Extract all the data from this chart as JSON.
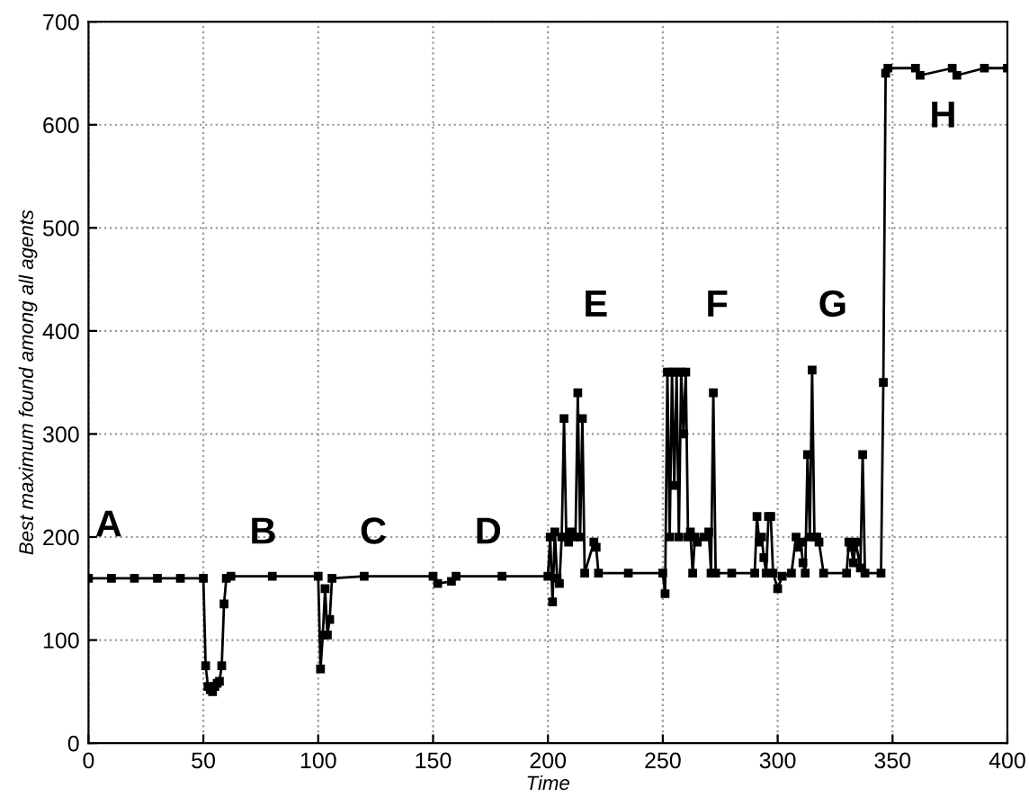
{
  "chart_data": {
    "type": "line",
    "xlabel": "Time",
    "ylabel": "Best maximum found among all agents",
    "xlim": [
      0,
      400
    ],
    "ylim": [
      0,
      700
    ],
    "xticks": [
      0,
      50,
      100,
      150,
      200,
      250,
      300,
      350,
      400
    ],
    "yticks": [
      0,
      100,
      200,
      300,
      400,
      500,
      600,
      700
    ],
    "grid": true,
    "marker": "square",
    "line_style": "solid",
    "series": [
      {
        "color": "#000000",
        "x": [
          0,
          10,
          20,
          30,
          40,
          50,
          51,
          52,
          53,
          54,
          55,
          56,
          57,
          58,
          59,
          60,
          62,
          80,
          100,
          101,
          102,
          103,
          104,
          105,
          106,
          120,
          150,
          152,
          158,
          160,
          180,
          200,
          201,
          202,
          203,
          204,
          205,
          206,
          207,
          208,
          209,
          210,
          212,
          213,
          214,
          215,
          216,
          220,
          221,
          222,
          235,
          250,
          251,
          252,
          253,
          254,
          255,
          256,
          257,
          258,
          259,
          260,
          261,
          262,
          263,
          264,
          265,
          268,
          270,
          271,
          272,
          273,
          280,
          290,
          291,
          292,
          293,
          294,
          295,
          296,
          297,
          298,
          300,
          302,
          306,
          308,
          309,
          310,
          311,
          312,
          313,
          314,
          315,
          316,
          317,
          318,
          320,
          330,
          331,
          332,
          333,
          334,
          336,
          337,
          338,
          345,
          346,
          347,
          348,
          360,
          362,
          376,
          378,
          390,
          400
        ],
        "values": [
          160,
          160,
          160,
          160,
          160,
          160,
          75,
          55,
          52,
          50,
          55,
          58,
          60,
          75,
          135,
          160,
          162,
          162,
          162,
          72,
          105,
          150,
          105,
          120,
          160,
          162,
          162,
          155,
          157,
          162,
          162,
          162,
          200,
          137,
          205,
          160,
          155,
          200,
          315,
          200,
          195,
          205,
          200,
          340,
          200,
          315,
          165,
          195,
          190,
          165,
          165,
          165,
          145,
          360,
          200,
          360,
          250,
          360,
          200,
          360,
          300,
          360,
          200,
          205,
          165,
          200,
          195,
          200,
          205,
          165,
          340,
          165,
          165,
          165,
          220,
          195,
          200,
          180,
          165,
          220,
          220,
          165,
          150,
          162,
          165,
          200,
          190,
          195,
          175,
          165,
          280,
          200,
          362,
          200,
          200,
          195,
          165,
          165,
          195,
          190,
          175,
          195,
          170,
          280,
          165,
          165,
          350,
          650,
          655,
          655,
          648,
          655,
          648,
          655,
          655
        ]
      }
    ],
    "annotations": [
      "A",
      "B",
      "C",
      "D",
      "E",
      "F",
      "G",
      "H"
    ]
  }
}
